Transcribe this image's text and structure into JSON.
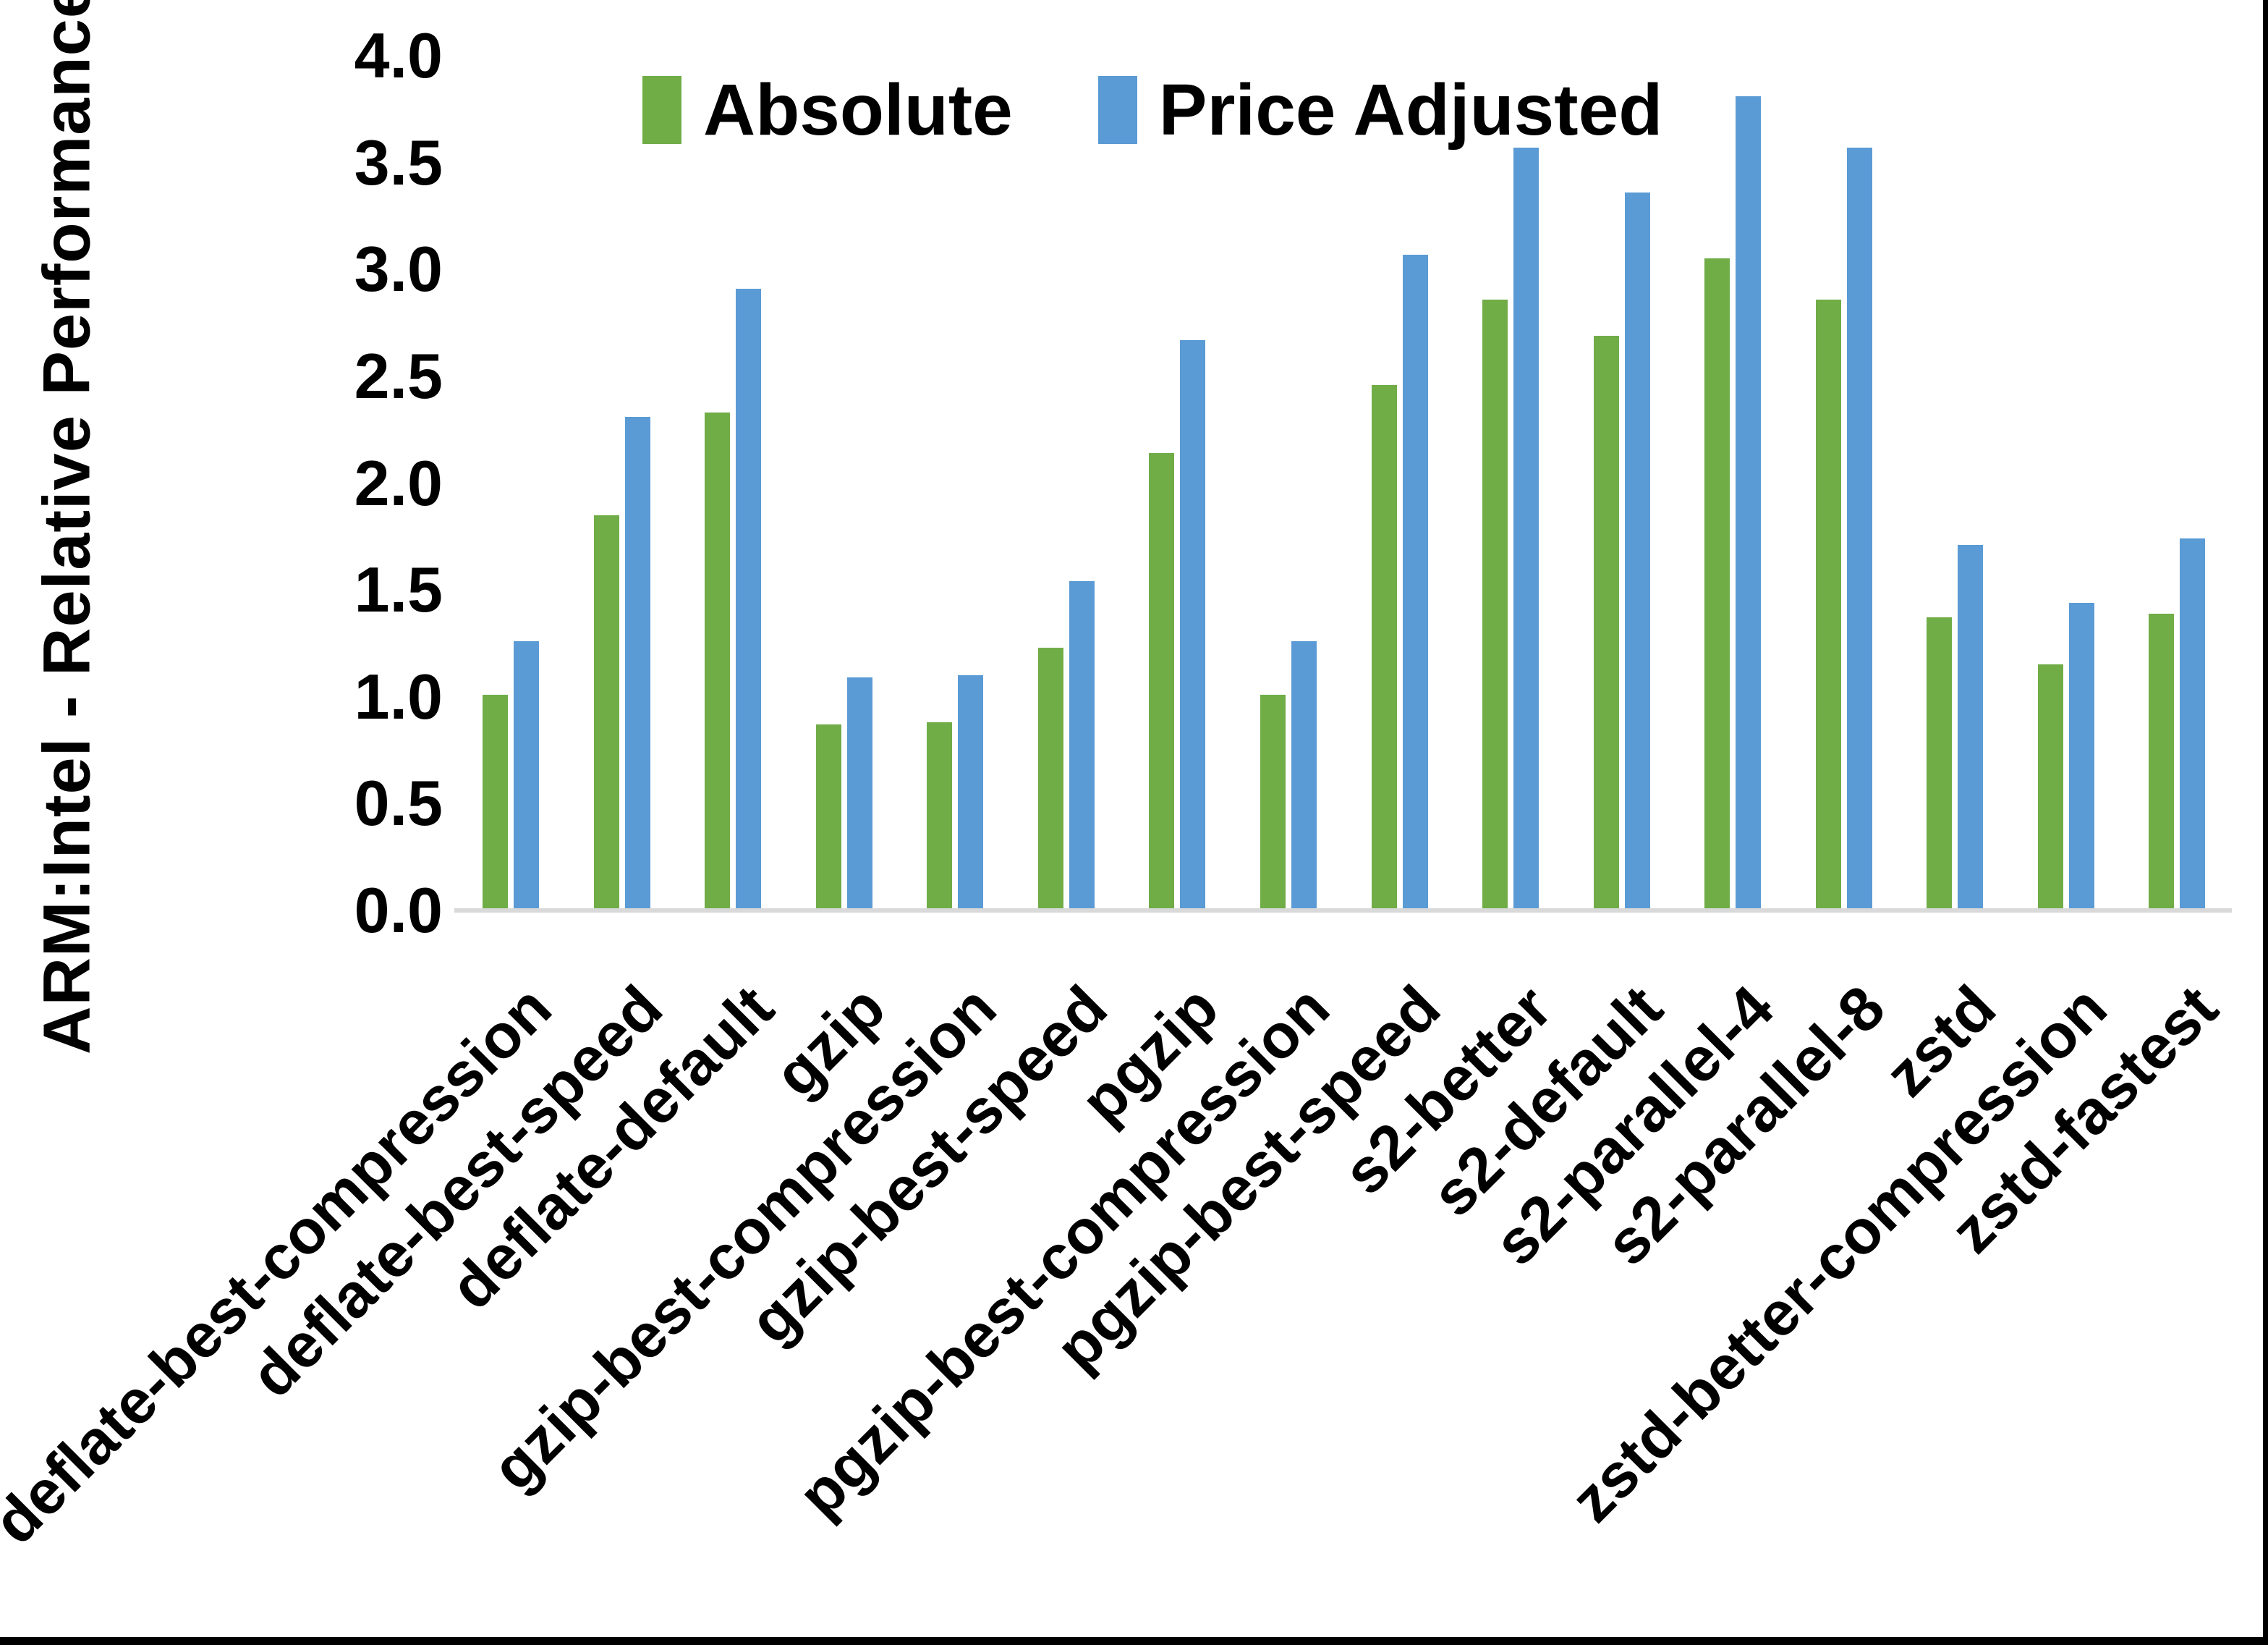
{
  "chart_data": {
    "type": "bar",
    "title": "",
    "xlabel": "",
    "ylabel": "ARM:Intel - Relative Performance",
    "ylim": [
      0.0,
      4.0
    ],
    "ytick_step": 0.5,
    "ytick_labels": [
      "0.0",
      "0.5",
      "1.0",
      "1.5",
      "2.0",
      "2.5",
      "3.0",
      "3.5",
      "4.0"
    ],
    "grid": false,
    "legend_position": "top-center",
    "categories": [
      "deflate-best-compression",
      "deflate-best-speed",
      "deflate-default",
      "gzip",
      "gzip-best-compression",
      "gzip-best-speed",
      "pgzip",
      "pgzip-best-compression",
      "pgzip-best-speed",
      "s2-better",
      "s2-default",
      "s2-parallel-4",
      "s2-parallel-8",
      "zstd",
      "zstd-better-compression",
      "zstd-fastest"
    ],
    "series": [
      {
        "name": "Absolute",
        "color": "#70AD47",
        "values": [
          1.0,
          1.84,
          2.32,
          0.86,
          0.87,
          1.22,
          2.13,
          1.0,
          2.45,
          2.85,
          2.68,
          3.04,
          2.85,
          1.36,
          1.14,
          1.38
        ]
      },
      {
        "name": "Price Adjusted",
        "color": "#5B9BD5",
        "values": [
          1.25,
          2.3,
          2.9,
          1.08,
          1.09,
          1.53,
          2.66,
          1.25,
          3.06,
          3.56,
          3.35,
          3.8,
          3.56,
          1.7,
          1.43,
          1.73
        ]
      }
    ]
  },
  "colors": {
    "background": "#FFFFFF",
    "axis_line": "#D9D9D9",
    "text": "#000000",
    "frame": "#000000"
  }
}
